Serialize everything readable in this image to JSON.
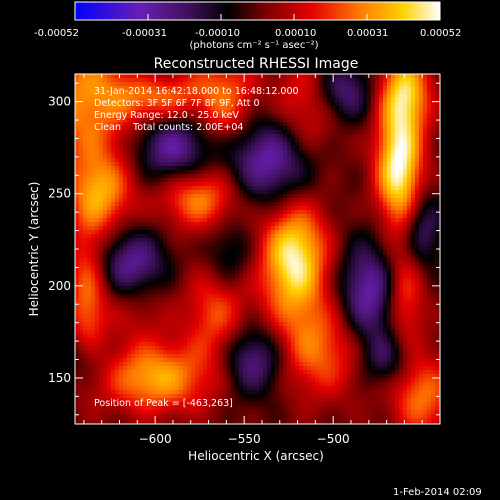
{
  "colorbar": {
    "ticks": [
      "-0.00052",
      "-0.00031",
      "-0.00010",
      "0.00010",
      "0.00031",
      "0.00052"
    ],
    "unit_label": "(photons cm⁻² s⁻¹ asec⁻²)"
  },
  "plot": {
    "title": "Reconstructed RHESSI Image",
    "time_range": "31-Jan-2014 16:42:18.000 to 16:48:12.000",
    "detectors": "Detectors: 3F 5F 6F 7F 8F 9F, Att 0",
    "energy_range": "Energy Range: 12.0 - 25.0 keV",
    "algorithm": "Clean    Total counts: 2.00E+04",
    "peak_position": "Position of Peak = [-463,263]",
    "xlabel": "Heliocentric X (arcsec)",
    "ylabel": "Heliocentric Y (arcsec)",
    "footer_date": "1-Feb-2014 02:09"
  },
  "chart_data": {
    "type": "heatmap",
    "title": "Reconstructed RHESSI Image",
    "xlabel": "Heliocentric X (arcsec)",
    "ylabel": "Heliocentric Y (arcsec)",
    "xlim": [
      -645,
      -440
    ],
    "ylim": [
      125,
      315
    ],
    "x_ticks": [
      -600,
      -550,
      -500
    ],
    "y_ticks": [
      150,
      200,
      250,
      300
    ],
    "colorbar_range": [
      -0.00052,
      0.00052
    ],
    "colorbar_ticks": [
      -0.00052,
      -0.00031,
      -0.0001,
      0.0001,
      0.00031,
      0.00052
    ],
    "colormap": [
      "#0000ff",
      "#6a1fb4",
      "#3a0f55",
      "#000000",
      "#7a0000",
      "#e60000",
      "#ff7a00",
      "#ffd200",
      "#ffffff"
    ],
    "peak_position": [
      -463,
      263
    ],
    "blobs": [
      {
        "x": -640,
        "y": 300,
        "amp": 0.0003,
        "sx": 18,
        "sy": 28
      },
      {
        "x": -598,
        "y": 305,
        "amp": 0.00034,
        "sx": 18,
        "sy": 12
      },
      {
        "x": -560,
        "y": 300,
        "amp": 0.00026,
        "sx": 12,
        "sy": 18
      },
      {
        "x": -515,
        "y": 295,
        "amp": 0.00024,
        "sx": 14,
        "sy": 20
      },
      {
        "x": -463,
        "y": 263,
        "amp": 0.00052,
        "sx": 9,
        "sy": 22
      },
      {
        "x": -460,
        "y": 305,
        "amp": 0.0004,
        "sx": 10,
        "sy": 16
      },
      {
        "x": -630,
        "y": 250,
        "amp": 0.0003,
        "sx": 12,
        "sy": 15
      },
      {
        "x": -575,
        "y": 248,
        "amp": 0.00032,
        "sx": 16,
        "sy": 12
      },
      {
        "x": -522,
        "y": 215,
        "amp": 0.0005,
        "sx": 13,
        "sy": 22
      },
      {
        "x": -510,
        "y": 165,
        "amp": 0.00028,
        "sx": 20,
        "sy": 18
      },
      {
        "x": -565,
        "y": 185,
        "amp": 0.00026,
        "sx": 12,
        "sy": 25
      },
      {
        "x": -610,
        "y": 200,
        "amp": 0.00022,
        "sx": 14,
        "sy": 18
      },
      {
        "x": -600,
        "y": 150,
        "amp": 0.00036,
        "sx": 20,
        "sy": 13
      },
      {
        "x": -638,
        "y": 195,
        "amp": 0.00028,
        "sx": 8,
        "sy": 28
      },
      {
        "x": -450,
        "y": 140,
        "amp": 0.00028,
        "sx": 12,
        "sy": 16
      },
      {
        "x": -460,
        "y": 195,
        "amp": 0.00025,
        "sx": 8,
        "sy": 20
      },
      {
        "x": -612,
        "y": 210,
        "amp": -0.00046,
        "sx": 14,
        "sy": 14
      },
      {
        "x": -590,
        "y": 275,
        "amp": -0.00032,
        "sx": 15,
        "sy": 14
      },
      {
        "x": -535,
        "y": 268,
        "amp": -0.00036,
        "sx": 18,
        "sy": 18
      },
      {
        "x": -545,
        "y": 160,
        "amp": -0.00034,
        "sx": 14,
        "sy": 14
      },
      {
        "x": -480,
        "y": 195,
        "amp": -0.00034,
        "sx": 12,
        "sy": 20
      },
      {
        "x": -495,
        "y": 305,
        "amp": -0.00028,
        "sx": 12,
        "sy": 12
      },
      {
        "x": -600,
        "y": 315,
        "amp": -0.00018,
        "sx": 12,
        "sy": 8
      },
      {
        "x": -450,
        "y": 230,
        "amp": -0.00024,
        "sx": 8,
        "sy": 15
      },
      {
        "x": -560,
        "y": 215,
        "amp": -0.00022,
        "sx": 10,
        "sy": 14
      },
      {
        "x": -470,
        "y": 160,
        "amp": -0.0002,
        "sx": 10,
        "sy": 10
      },
      {
        "x": -640,
        "y": 160,
        "amp": -0.00015,
        "sx": 10,
        "sy": 10
      }
    ]
  }
}
